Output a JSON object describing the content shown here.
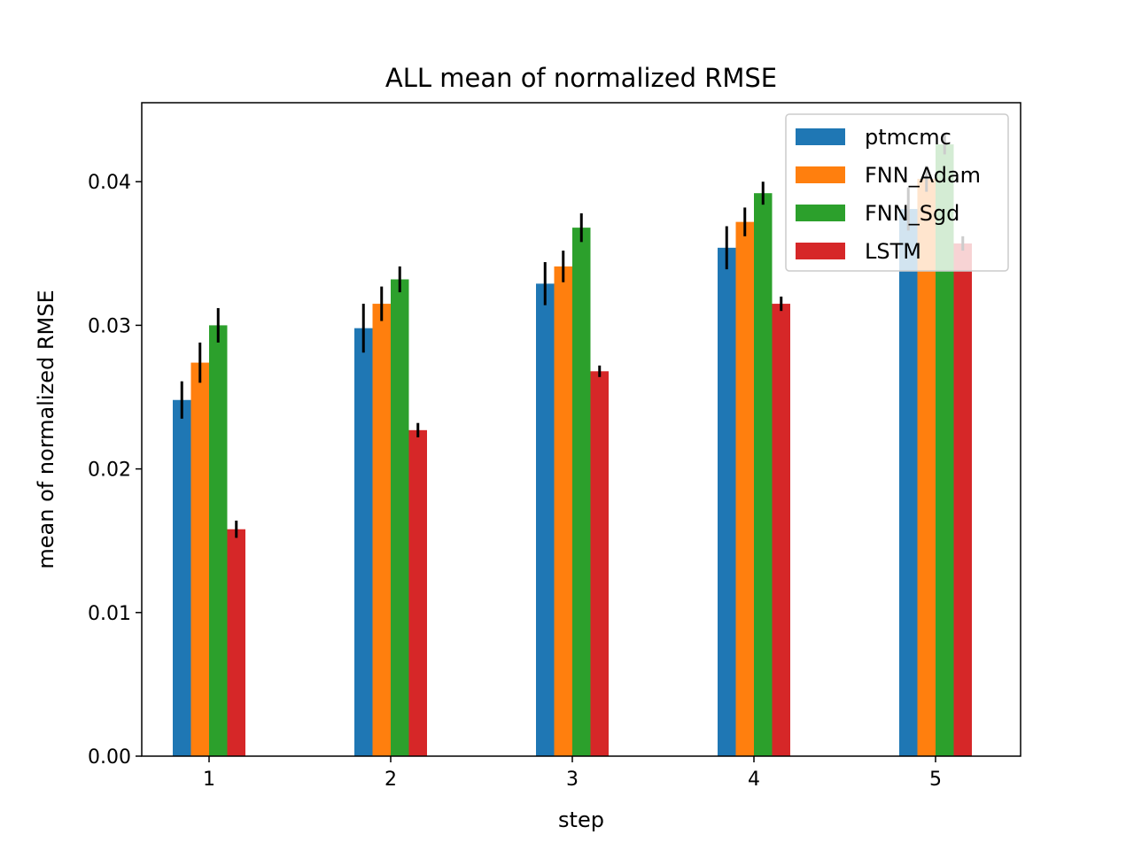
{
  "chart_data": {
    "type": "bar",
    "title": "ALL mean of normalized RMSE",
    "xlabel": "step",
    "ylabel": "mean of normalized RMSE",
    "categories": [
      "1",
      "2",
      "3",
      "4",
      "5"
    ],
    "ylim": [
      0,
      0.0455
    ],
    "yticks": [
      "0.00",
      "0.01",
      "0.02",
      "0.03",
      "0.04"
    ],
    "grid": false,
    "legend_position": "top-right",
    "series": [
      {
        "name": "ptmcmc",
        "color": "#1f77b4",
        "values": [
          0.0248,
          0.0298,
          0.0329,
          0.0354,
          0.0381
        ],
        "errors": [
          0.0013,
          0.0017,
          0.0015,
          0.0015,
          0.0015
        ]
      },
      {
        "name": "FNN_Adam",
        "color": "#ff7f0e",
        "values": [
          0.0274,
          0.0315,
          0.0341,
          0.0372,
          0.0402
        ],
        "errors": [
          0.0014,
          0.0012,
          0.0011,
          0.001,
          0.0009
        ]
      },
      {
        "name": "FNN_Sgd",
        "color": "#2ca02c",
        "values": [
          0.03,
          0.0332,
          0.0368,
          0.0392,
          0.0426
        ],
        "errors": [
          0.0012,
          0.0009,
          0.001,
          0.0008,
          0.0007
        ]
      },
      {
        "name": "LSTM",
        "color": "#d62728",
        "values": [
          0.0158,
          0.0227,
          0.0268,
          0.0315,
          0.0357
        ],
        "errors": [
          0.0006,
          0.0005,
          0.0004,
          0.0005,
          0.0005
        ]
      }
    ]
  }
}
